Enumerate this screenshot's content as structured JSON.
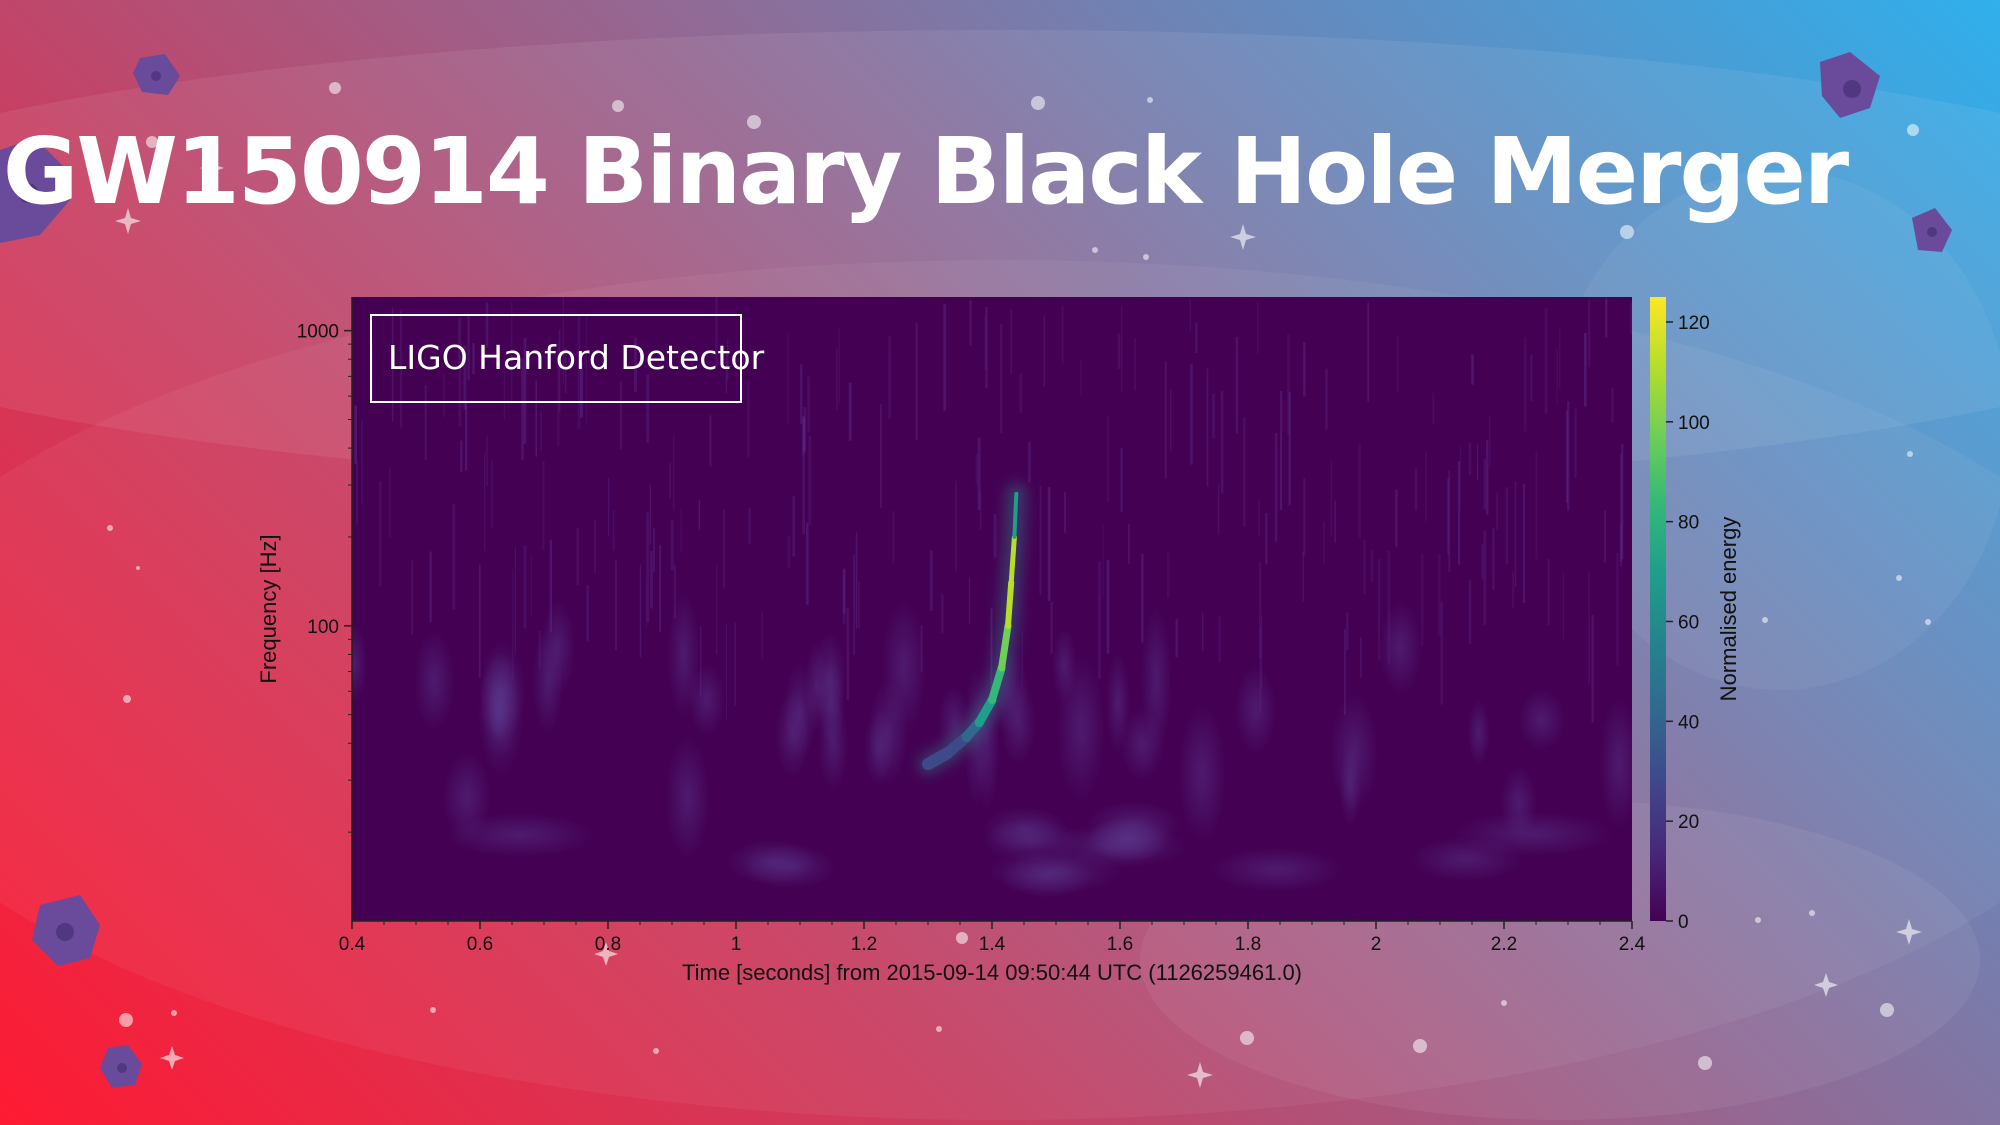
{
  "slide": {
    "title": "GW150914 Binary Black Hole Merger"
  },
  "chart_data": {
    "type": "heatmap",
    "title": "GW150914 Binary Black Hole Merger",
    "annotation": "LIGO Hanford Detector",
    "xlabel": "Time [seconds] from 2015-09-14 09:50:44 UTC (1126259461.0)",
    "ylabel": "Frequency [Hz]",
    "xlim": [
      0.4,
      2.4
    ],
    "ylim": [
      10,
      1300
    ],
    "yscale": "log",
    "x_ticks": [
      0.4,
      0.6,
      0.8,
      1,
      1.2,
      1.4,
      1.6,
      1.8,
      2,
      2.2,
      2.4
    ],
    "x_tick_labels": [
      "0.4",
      "0.6",
      "0.8",
      "1",
      "1.2",
      "1.4",
      "1.6",
      "1.8",
      "2",
      "2.2",
      "2.4"
    ],
    "y_ticks": [
      100,
      1000
    ],
    "y_tick_labels": [
      "100",
      "1000"
    ],
    "colorbar": {
      "label": "Normalised energy",
      "range": [
        0,
        125
      ],
      "ticks": [
        0,
        20,
        40,
        60,
        80,
        100,
        120
      ],
      "tick_labels": [
        "0",
        "20",
        "40",
        "60",
        "80",
        "100",
        "120"
      ],
      "colormap": "viridis",
      "stops": [
        "#440154",
        "#482878",
        "#3e4989",
        "#31688e",
        "#26828e",
        "#1f9e89",
        "#35b779",
        "#6ece58",
        "#b5de2b",
        "#fde725"
      ]
    },
    "chirp": {
      "description": "energy track",
      "points": [
        {
          "t": 1.3,
          "f": 34,
          "energy": 20
        },
        {
          "t": 1.33,
          "f": 37,
          "energy": 28
        },
        {
          "t": 1.36,
          "f": 42,
          "energy": 40
        },
        {
          "t": 1.38,
          "f": 47,
          "energy": 55
        },
        {
          "t": 1.4,
          "f": 56,
          "energy": 70
        },
        {
          "t": 1.415,
          "f": 72,
          "energy": 85
        },
        {
          "t": 1.425,
          "f": 100,
          "energy": 100
        },
        {
          "t": 1.43,
          "f": 140,
          "energy": 118
        },
        {
          "t": 1.435,
          "f": 200,
          "energy": 95
        },
        {
          "t": 1.438,
          "f": 280,
          "energy": 50
        }
      ]
    },
    "background_color": "#440154"
  }
}
